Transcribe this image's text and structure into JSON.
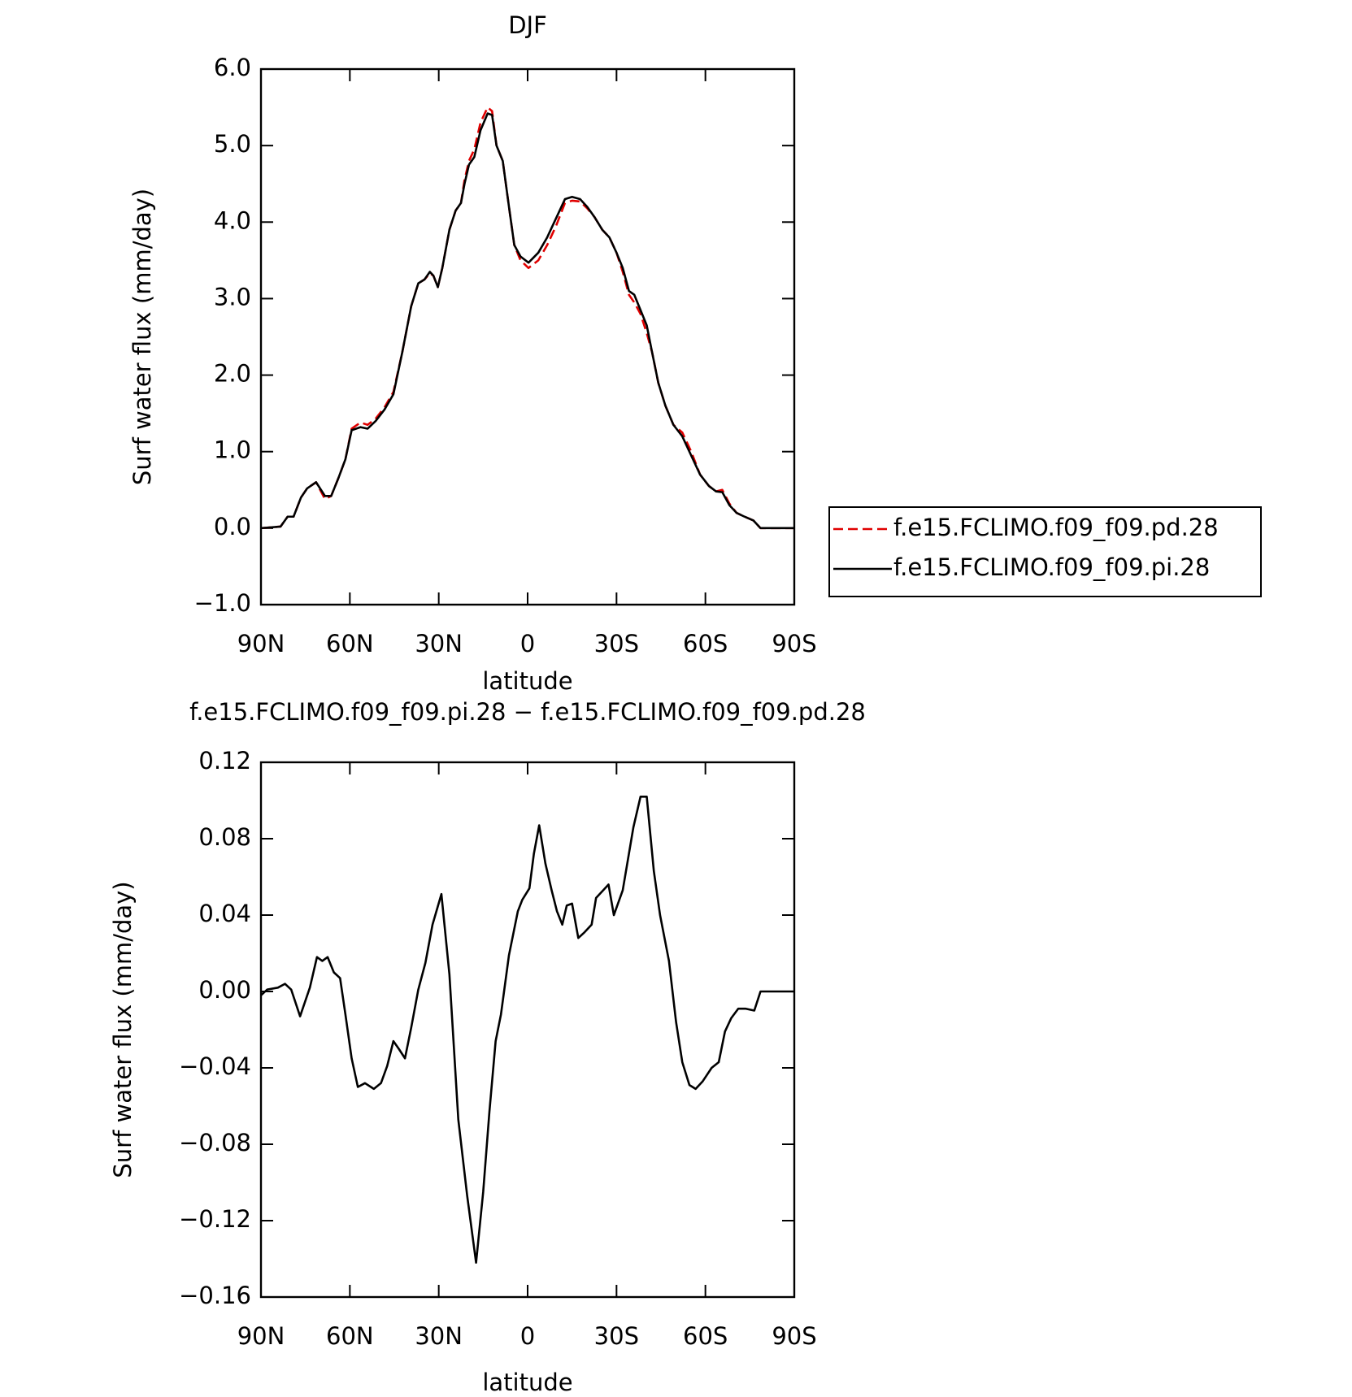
{
  "chart_data": [
    {
      "type": "line",
      "title": "DJF",
      "xlabel": "latitude",
      "ylabel": "Surf water flux (mm/day)",
      "xlim": [
        90,
        -90
      ],
      "ylim": [
        -1,
        6
      ],
      "xticks": [
        {
          "value": 90,
          "label": "90N"
        },
        {
          "value": 60,
          "label": "60N"
        },
        {
          "value": 30,
          "label": "30N"
        },
        0,
        {
          "value": -30,
          "label": "30S"
        },
        {
          "value": -60,
          "label": "60S"
        },
        {
          "value": -90,
          "label": "90S"
        }
      ],
      "yticks": [
        {
          "value": -1,
          "label": "−1.0"
        },
        {
          "value": 0,
          "label": "0.0"
        },
        {
          "value": 1,
          "label": "1.0"
        },
        {
          "value": 2,
          "label": "2.0"
        },
        {
          "value": 3,
          "label": "3.0"
        },
        {
          "value": 4,
          "label": "4.0"
        },
        {
          "value": 5,
          "label": "5.0"
        },
        {
          "value": 6,
          "label": "6.0"
        }
      ],
      "legend": "right",
      "x": [
        90,
        83.4,
        81,
        79,
        76.5,
        74.4,
        71.4,
        68.4,
        66.3,
        63.9,
        61.5,
        59.4,
        56.4,
        54,
        51.3,
        48.3,
        45.3,
        42.3,
        39.3,
        36.9,
        34.8,
        33,
        31.8,
        30.3,
        28.8,
        26.4,
        24.3,
        22.5,
        21.3,
        19.8,
        18,
        15.9,
        13.5,
        12,
        10.5,
        8.4,
        6.3,
        4.5,
        2.4,
        -0.3,
        -3.6,
        -6.6,
        -9.6,
        -12.6,
        -15,
        -17.7,
        -20.1,
        -22.5,
        -25.2,
        -27.6,
        -30,
        -32.1,
        -34.2,
        -36,
        -38.1,
        -40.2,
        -42,
        -44.1,
        -46.5,
        -49.2,
        -52.2,
        -55.2,
        -58.2,
        -61.2,
        -63.6,
        -65.7,
        -68.1,
        -70.5,
        -73.2,
        -76.2,
        -78.6,
        -83.1,
        -90
      ],
      "series": [
        {
          "name": "f.e15.FCLIMO.f09_f09.pd.28",
          "color": "#e00000",
          "dashed": true,
          "values": [
            0,
            0.02,
            0.15,
            0.15,
            0.4,
            0.52,
            0.6,
            0.38,
            0.42,
            0.65,
            0.9,
            1.3,
            1.38,
            1.35,
            1.43,
            1.58,
            1.78,
            2.3,
            2.9,
            3.2,
            3.25,
            3.33,
            3.3,
            3.15,
            3.4,
            3.9,
            4.15,
            4.25,
            4.55,
            4.8,
            4.95,
            5.3,
            5.5,
            5.45,
            5.0,
            4.8,
            4.2,
            3.7,
            3.5,
            3.4,
            3.5,
            3.7,
            3.95,
            4.25,
            4.28,
            4.27,
            4.18,
            4.07,
            3.9,
            3.8,
            3.6,
            3.35,
            3.05,
            2.95,
            2.8,
            2.55,
            2.3,
            1.9,
            1.6,
            1.35,
            1.25,
            1.0,
            0.7,
            0.55,
            0.48,
            0.5,
            0.32,
            0.2,
            0.15,
            0.1,
            0,
            0,
            0
          ]
        },
        {
          "name": "f.e15.FCLIMO.f09_f09.pi.28",
          "color": "#000000",
          "dashed": false,
          "values": [
            0,
            0.02,
            0.15,
            0.15,
            0.4,
            0.52,
            0.6,
            0.42,
            0.42,
            0.65,
            0.9,
            1.28,
            1.32,
            1.3,
            1.4,
            1.55,
            1.75,
            2.3,
            2.9,
            3.2,
            3.25,
            3.35,
            3.3,
            3.15,
            3.4,
            3.9,
            4.15,
            4.25,
            4.5,
            4.75,
            4.85,
            5.2,
            5.42,
            5.4,
            5.0,
            4.8,
            4.2,
            3.7,
            3.55,
            3.47,
            3.6,
            3.8,
            4.05,
            4.3,
            4.33,
            4.3,
            4.2,
            4.07,
            3.9,
            3.8,
            3.6,
            3.4,
            3.1,
            3.05,
            2.85,
            2.65,
            2.3,
            1.9,
            1.6,
            1.35,
            1.2,
            0.95,
            0.7,
            0.55,
            0.48,
            0.47,
            0.3,
            0.2,
            0.15,
            0.1,
            0,
            0,
            0
          ]
        }
      ]
    },
    {
      "type": "line",
      "title": "f.e15.FCLIMO.f09_f09.pi.28 − f.e15.FCLIMO.f09_f09.pd.28",
      "xlabel": "latitude",
      "ylabel": "Surf water flux (mm/day)",
      "xlim": [
        90,
        -90
      ],
      "ylim": [
        -0.16,
        0.12
      ],
      "xticks": [
        {
          "value": 90,
          "label": "90N"
        },
        {
          "value": 60,
          "label": "60N"
        },
        {
          "value": 30,
          "label": "30N"
        },
        0,
        {
          "value": -30,
          "label": "30S"
        },
        {
          "value": -60,
          "label": "60S"
        },
        {
          "value": -90,
          "label": "90S"
        }
      ],
      "yticks": [
        {
          "value": -0.16,
          "label": "−0.16"
        },
        {
          "value": -0.12,
          "label": "−0.12"
        },
        {
          "value": -0.08,
          "label": "−0.08"
        },
        {
          "value": -0.04,
          "label": "−0.04"
        },
        {
          "value": 0,
          "label": "0.00"
        },
        0.04,
        0.08,
        0.12
      ],
      "x": [
        90,
        87.9,
        84.3,
        81.9,
        79.8,
        76.8,
        73.5,
        71.1,
        69.3,
        67.5,
        65.4,
        63.3,
        61.5,
        59.4,
        57.3,
        54.9,
        51.9,
        49.5,
        47.4,
        45.3,
        43.5,
        41.4,
        39.3,
        36.9,
        34.5,
        32.1,
        29.1,
        26.4,
        23.4,
        20.4,
        17.4,
        15,
        12.9,
        10.8,
        9,
        6.3,
        3.3,
        1.8,
        -0.6,
        -2.1,
        -3.9,
        -6,
        -8.1,
        -9.9,
        -11.7,
        -13.2,
        -15,
        -17.1,
        -19.2,
        -21.6,
        -23.1,
        -25.5,
        -27.3,
        -29.1,
        -32.1,
        -35.7,
        -38.1,
        -40.2,
        -42.6,
        -44.7,
        -47.7,
        -50.1,
        -52.2,
        -54.6,
        -56.7,
        -59.1,
        -62.1,
        -64.5,
        -66.6,
        -68.7,
        -71.1,
        -73.5,
        -76.5,
        -78.6,
        -83.1,
        -90
      ],
      "series": [
        {
          "color": "#000000",
          "dashed": false,
          "values": [
            -0.002,
            0.001,
            0.002,
            0.004,
            0.001,
            -0.013,
            0.002,
            0.018,
            0.016,
            0.018,
            0.01,
            0.007,
            -0.012,
            -0.035,
            -0.05,
            -0.048,
            -0.051,
            -0.048,
            -0.039,
            -0.026,
            -0.03,
            -0.035,
            -0.019,
            0.001,
            0.015,
            0.035,
            0.051,
            0.009,
            -0.067,
            -0.107,
            -0.142,
            -0.105,
            -0.063,
            -0.026,
            -0.012,
            0.019,
            0.042,
            0.048,
            0.054,
            0.072,
            0.087,
            0.067,
            0.053,
            0.042,
            0.035,
            0.045,
            0.046,
            0.028,
            0.031,
            0.035,
            0.049,
            0.053,
            0.056,
            0.04,
            0.053,
            0.086,
            0.102,
            0.102,
            0.063,
            0.04,
            0.016,
            -0.016,
            -0.037,
            -0.049,
            -0.051,
            -0.047,
            -0.04,
            -0.037,
            -0.021,
            -0.014,
            -0.009,
            -0.009,
            -0.01,
            0,
            0,
            0
          ]
        }
      ]
    }
  ]
}
